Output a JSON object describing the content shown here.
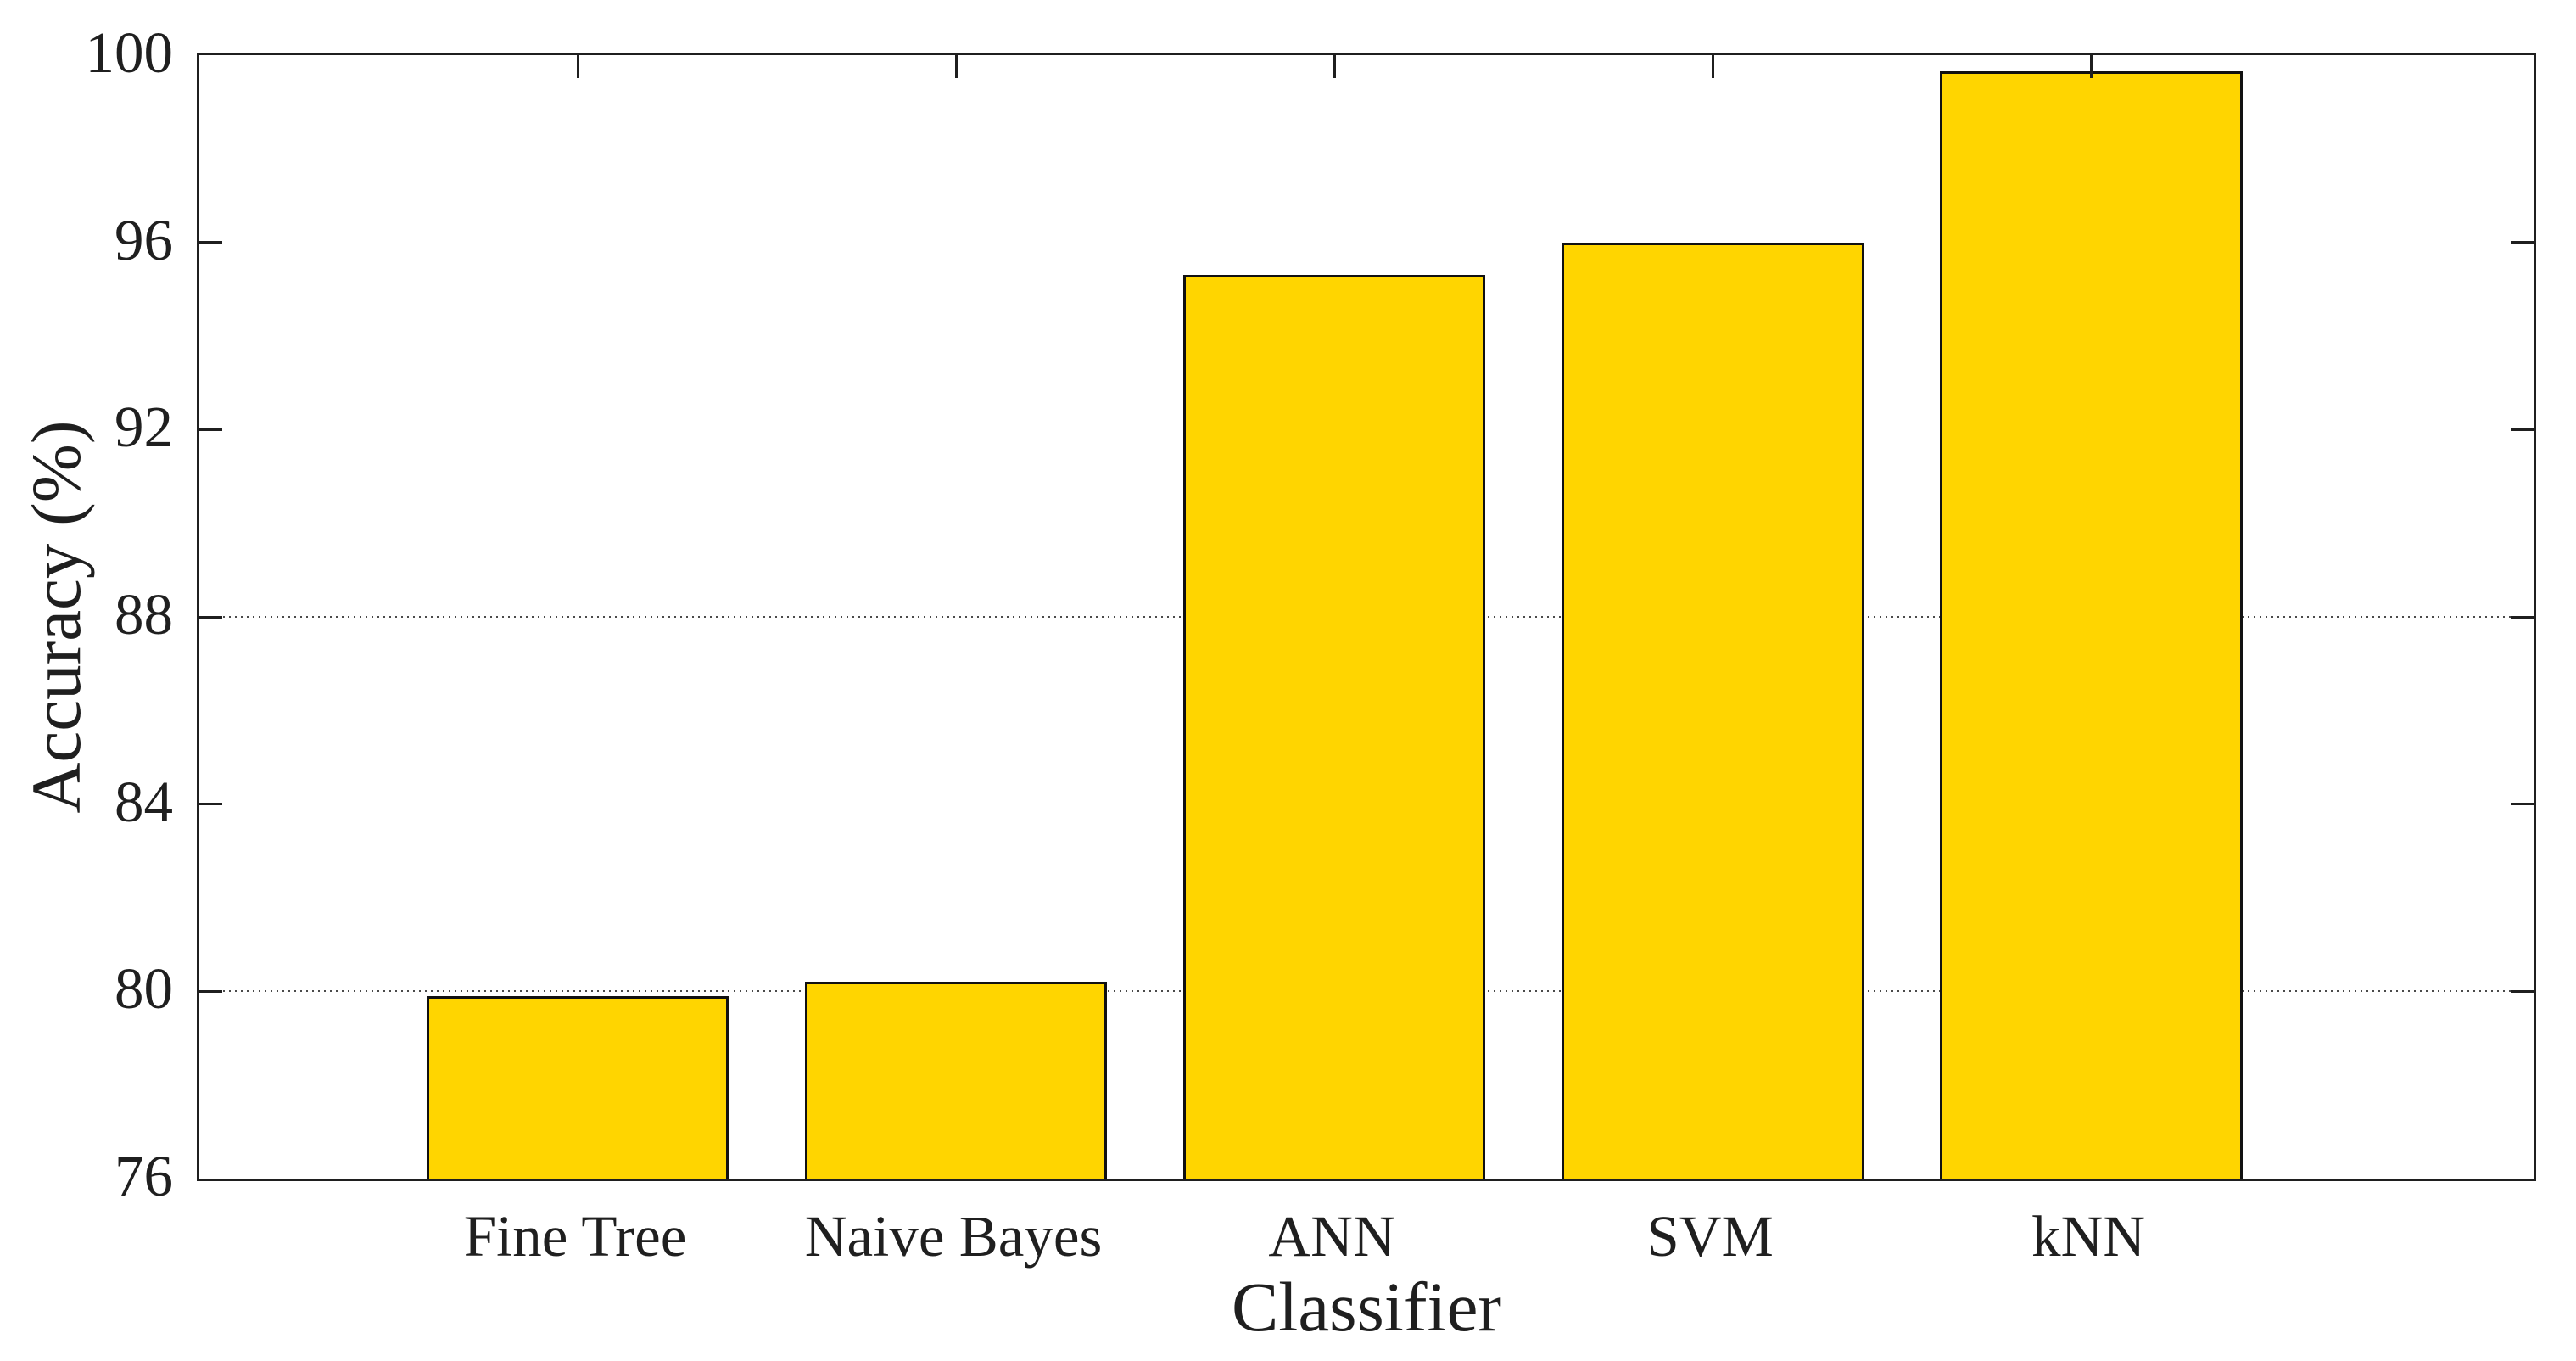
{
  "figure": {
    "background_color": "#ffffff",
    "text_color": "#1f1f1f"
  },
  "chart_data": {
    "type": "bar",
    "title": "",
    "xlabel": "Classifier",
    "ylabel": "Accuracy (%)",
    "categories": [
      "Fine Tree",
      "Naive Bayes",
      "ANN",
      "SVM",
      "kNN"
    ],
    "values": [
      79.9,
      80.2,
      95.3,
      96.0,
      99.65
    ],
    "ylim": [
      76,
      100
    ],
    "yticks": [
      76,
      80,
      84,
      88,
      92,
      96,
      100
    ],
    "gridlines_y": [
      80,
      88
    ],
    "grid_style": "dotted",
    "grid_on": "partial (only at 80 and 88)",
    "legend_position": "none",
    "bar_color": "#FFD500",
    "bar_edge_color": "#111111",
    "axis_color": "#1f1f1f",
    "bar_width_units": 0.8,
    "x_axis_span_units": 6.17,
    "tick_direction": "in",
    "box_on": true
  }
}
